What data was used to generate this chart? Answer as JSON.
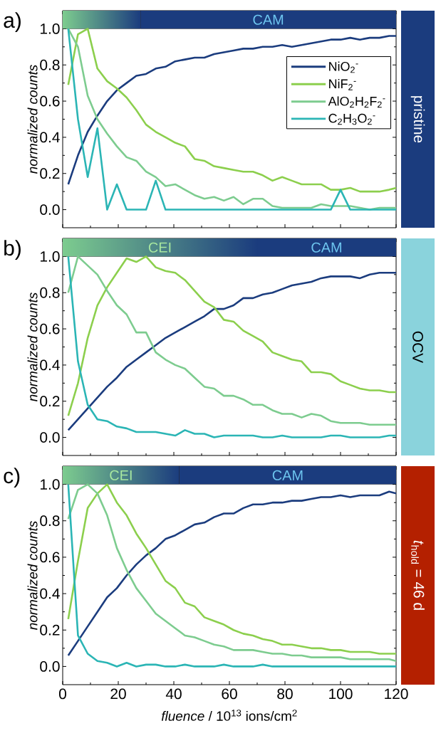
{
  "chart_data": [
    {
      "type": "line",
      "title": "a)",
      "y2label": "pristine",
      "ylabel": "normalized counts",
      "tick_labels": "y",
      "legend": "top right",
      "x": [
        2,
        5.5,
        9,
        12.5,
        16,
        19.5,
        23,
        26.5,
        30,
        33.5,
        37,
        40.5,
        44,
        47.5,
        51,
        54.5,
        58,
        61.5,
        65,
        68.5,
        72,
        75.5,
        79,
        82.5,
        86,
        89.5,
        93,
        96.5,
        100,
        103.5,
        107,
        110.5,
        114,
        117.5,
        120
      ],
      "series": [
        {
          "name": "NiO$_{2}$$^{-}$",
          "color": "#1b3c7e",
          "values": [
            0.14,
            0.3,
            0.43,
            0.52,
            0.6,
            0.66,
            0.7,
            0.74,
            0.75,
            0.78,
            0.79,
            0.82,
            0.83,
            0.84,
            0.84,
            0.86,
            0.87,
            0.88,
            0.89,
            0.89,
            0.9,
            0.9,
            0.91,
            0.9,
            0.91,
            0.92,
            0.93,
            0.94,
            0.94,
            0.95,
            0.94,
            0.95,
            0.95,
            0.96,
            0.96
          ]
        },
        {
          "name": "NiF$_{2}$$^{-}$",
          "color": "#8ccf4d",
          "values": [
            0.69,
            0.97,
            1.0,
            0.78,
            0.71,
            0.67,
            0.62,
            0.55,
            0.47,
            0.43,
            0.4,
            0.37,
            0.35,
            0.28,
            0.27,
            0.24,
            0.23,
            0.22,
            0.21,
            0.21,
            0.19,
            0.16,
            0.18,
            0.16,
            0.14,
            0.14,
            0.14,
            0.11,
            0.11,
            0.12,
            0.1,
            0.1,
            0.1,
            0.11,
            0.12
          ]
        },
        {
          "name": "AlO$_{2}$H$_{2}$F$_{2}$$^{-}$",
          "color": "#7dcc8f",
          "values": [
            1.0,
            0.9,
            0.63,
            0.5,
            0.42,
            0.35,
            0.29,
            0.27,
            0.21,
            0.18,
            0.13,
            0.14,
            0.11,
            0.08,
            0.06,
            0.07,
            0.05,
            0.07,
            0.03,
            0.06,
            0.06,
            0.02,
            0.01,
            0.01,
            0.01,
            0.01,
            0.03,
            0.02,
            0.02,
            0.02,
            0.01,
            0.0,
            0.01,
            0.01,
            0.01
          ]
        },
        {
          "name": "C$_{2}$H$_{3}$O$_{2}$$^{-}$",
          "color": "#2bb5b5",
          "values": [
            1.0,
            0.5,
            0.18,
            0.45,
            0.0,
            0.14,
            0.0,
            0.0,
            0.0,
            0.16,
            0.0,
            0.0,
            0.0,
            0.0,
            0.0,
            0.0,
            0.0,
            0.0,
            0.0,
            0.0,
            0.0,
            0.0,
            0.0,
            0.0,
            0.0,
            0.0,
            0.0,
            0.0,
            0.11,
            0.0,
            0.0,
            0.0,
            0.0,
            0.0,
            0.0
          ]
        }
      ],
      "xlim": [
        0,
        120
      ],
      "ylim": [
        -0.1,
        1.1
      ],
      "xticks": [
        0,
        20,
        40,
        60,
        80,
        100,
        120
      ],
      "yticks": [
        {
          "value": 0,
          "label": "0.0"
        },
        {
          "value": 0.2,
          "label": "0.2"
        },
        {
          "value": 0.4,
          "label": "0.4"
        },
        {
          "value": 0.6,
          "label": "0.6"
        },
        {
          "value": 0.8,
          "label": "0.8"
        },
        {
          "value": 1,
          "label": "1.0"
        }
      ],
      "bands": [
        {
          "axis": "x",
          "from": 0,
          "to": 28,
          "color": "#7dcc8f"
        },
        {
          "axis": "x",
          "from": 28,
          "to": 120,
          "label": "CAM",
          "color": "#1b3c7e"
        }
      ]
    },
    {
      "type": "line",
      "title": "b)",
      "y2label": "OCV",
      "ylabel": "normalized counts",
      "tick_labels": "y",
      "x": [
        2,
        5.5,
        9,
        12.5,
        16,
        19.5,
        23,
        26.5,
        30,
        33.5,
        37,
        40.5,
        44,
        47.5,
        51,
        54.5,
        58,
        61.5,
        65,
        68.5,
        72,
        75.5,
        79,
        82.5,
        86,
        89.5,
        93,
        96.5,
        100,
        103.5,
        107,
        110.5,
        114,
        117.5,
        120
      ],
      "series": [
        {
          "color": "#1b3c7e",
          "values": [
            0.04,
            0.1,
            0.16,
            0.22,
            0.28,
            0.33,
            0.39,
            0.43,
            0.47,
            0.51,
            0.55,
            0.58,
            0.61,
            0.64,
            0.67,
            0.71,
            0.71,
            0.73,
            0.77,
            0.77,
            0.79,
            0.8,
            0.82,
            0.84,
            0.85,
            0.86,
            0.88,
            0.89,
            0.89,
            0.89,
            0.88,
            0.9,
            0.91,
            0.91,
            0.91
          ]
        },
        {
          "color": "#8ccf4d",
          "values": [
            0.12,
            0.3,
            0.55,
            0.73,
            0.83,
            0.91,
            0.99,
            0.97,
            1.0,
            0.94,
            0.92,
            0.91,
            0.87,
            0.81,
            0.75,
            0.72,
            0.65,
            0.64,
            0.59,
            0.56,
            0.53,
            0.47,
            0.45,
            0.43,
            0.42,
            0.36,
            0.36,
            0.35,
            0.31,
            0.29,
            0.27,
            0.26,
            0.26,
            0.25,
            0.25
          ]
        },
        {
          "color": "#7dcc8f",
          "values": [
            0.8,
            1.0,
            0.95,
            0.9,
            0.81,
            0.73,
            0.68,
            0.58,
            0.58,
            0.47,
            0.43,
            0.4,
            0.38,
            0.33,
            0.28,
            0.27,
            0.23,
            0.23,
            0.21,
            0.18,
            0.18,
            0.15,
            0.13,
            0.13,
            0.11,
            0.13,
            0.12,
            0.09,
            0.08,
            0.08,
            0.08,
            0.07,
            0.07,
            0.07,
            0.07
          ]
        },
        {
          "color": "#2bb5b5",
          "values": [
            1.0,
            0.42,
            0.18,
            0.1,
            0.09,
            0.06,
            0.05,
            0.03,
            0.03,
            0.03,
            0.02,
            0.01,
            0.04,
            0.02,
            0.02,
            0.0,
            0.01,
            0.01,
            0.01,
            0.01,
            0.0,
            0.0,
            0.01,
            0.0,
            0.0,
            0.0,
            0.0,
            0.01,
            0.01,
            0.0,
            0.0,
            0.0,
            0.0,
            0.01,
            0.01
          ]
        }
      ],
      "xlim": [
        0,
        120
      ],
      "ylim": [
        -0.1,
        1.1
      ],
      "xticks": [
        0,
        20,
        40,
        60,
        80,
        100,
        120
      ],
      "yticks": [
        {
          "value": 0,
          "label": "0.0"
        },
        {
          "value": 0.2,
          "label": "0.2"
        },
        {
          "value": 0.4,
          "label": "0.4"
        },
        {
          "value": 0.6,
          "label": "0.6"
        },
        {
          "value": 0.8,
          "label": "0.8"
        },
        {
          "value": 1,
          "label": "1.0"
        }
      ],
      "bands": [
        {
          "axis": "x",
          "from": 0,
          "to": 70,
          "label": "CEI",
          "color": "#7dcc8f"
        },
        {
          "axis": "x",
          "from": 70,
          "to": 120,
          "label": "CAM",
          "color": "#1b3c7e"
        }
      ]
    },
    {
      "type": "line",
      "title": "c)",
      "y2label": "*t*$_{hold}$ = 46 d",
      "ylabel": "normalized counts",
      "xlabel": "*fluence* / 10$^{13}$ ions/cm$^{2}$",
      "x": [
        2,
        5.5,
        9,
        12.5,
        16,
        19.5,
        23,
        26.5,
        30,
        33.5,
        37,
        40.5,
        44,
        47.5,
        51,
        54.5,
        58,
        61.5,
        65,
        68.5,
        72,
        75.5,
        79,
        82.5,
        86,
        89.5,
        93,
        96.5,
        100,
        103.5,
        107,
        110.5,
        114,
        117.5,
        120
      ],
      "series": [
        {
          "color": "#1b3c7e",
          "values": [
            0.06,
            0.14,
            0.22,
            0.3,
            0.38,
            0.43,
            0.5,
            0.56,
            0.61,
            0.65,
            0.7,
            0.72,
            0.75,
            0.78,
            0.79,
            0.82,
            0.84,
            0.84,
            0.87,
            0.89,
            0.89,
            0.9,
            0.9,
            0.91,
            0.91,
            0.92,
            0.93,
            0.93,
            0.94,
            0.93,
            0.94,
            0.94,
            0.94,
            0.96,
            0.95
          ]
        },
        {
          "color": "#8ccf4d",
          "values": [
            0.26,
            0.58,
            0.87,
            0.95,
            1.0,
            0.9,
            0.83,
            0.73,
            0.65,
            0.56,
            0.47,
            0.43,
            0.35,
            0.33,
            0.27,
            0.25,
            0.23,
            0.2,
            0.18,
            0.17,
            0.15,
            0.14,
            0.12,
            0.12,
            0.11,
            0.1,
            0.1,
            0.09,
            0.09,
            0.08,
            0.08,
            0.08,
            0.07,
            0.07,
            0.07
          ]
        },
        {
          "color": "#7dcc8f",
          "values": [
            0.81,
            0.97,
            1.0,
            0.95,
            0.83,
            0.65,
            0.53,
            0.43,
            0.36,
            0.29,
            0.25,
            0.21,
            0.17,
            0.16,
            0.14,
            0.12,
            0.11,
            0.09,
            0.09,
            0.09,
            0.08,
            0.07,
            0.07,
            0.06,
            0.06,
            0.05,
            0.05,
            0.05,
            0.05,
            0.04,
            0.04,
            0.04,
            0.04,
            0.04,
            0.03
          ]
        },
        {
          "color": "#2bb5b5",
          "values": [
            1.0,
            0.17,
            0.07,
            0.03,
            0.02,
            0.0,
            0.02,
            0.0,
            0.01,
            0.01,
            0.0,
            0.0,
            0.01,
            0.0,
            0.0,
            0.0,
            0.01,
            0.0,
            0.0,
            0.0,
            0.01,
            0.0,
            0.0,
            0.0,
            0.0,
            0.0,
            0.0,
            0.0,
            0.0,
            0.0,
            0.0,
            0.0,
            0.0,
            0.0,
            0.0
          ]
        }
      ],
      "xlim": [
        0,
        120
      ],
      "ylim": [
        -0.1,
        1.1
      ],
      "xticks": [
        0,
        20,
        40,
        60,
        80,
        100,
        120
      ],
      "yticks": [
        {
          "value": 0,
          "label": "0.0"
        },
        {
          "value": 0.2,
          "label": "0.2"
        },
        {
          "value": 0.4,
          "label": "0.4"
        },
        {
          "value": 0.6,
          "label": "0.6"
        },
        {
          "value": 0.8,
          "label": "0.8"
        },
        {
          "value": 1,
          "label": "1.0"
        }
      ],
      "bands": [
        {
          "axis": "x",
          "from": 0,
          "to": 42,
          "label": "CEI",
          "color": "#7dcc8f"
        },
        {
          "axis": "x",
          "from": 42,
          "to": 120,
          "label": "CAM",
          "color": "#1b3c7e"
        }
      ]
    }
  ]
}
